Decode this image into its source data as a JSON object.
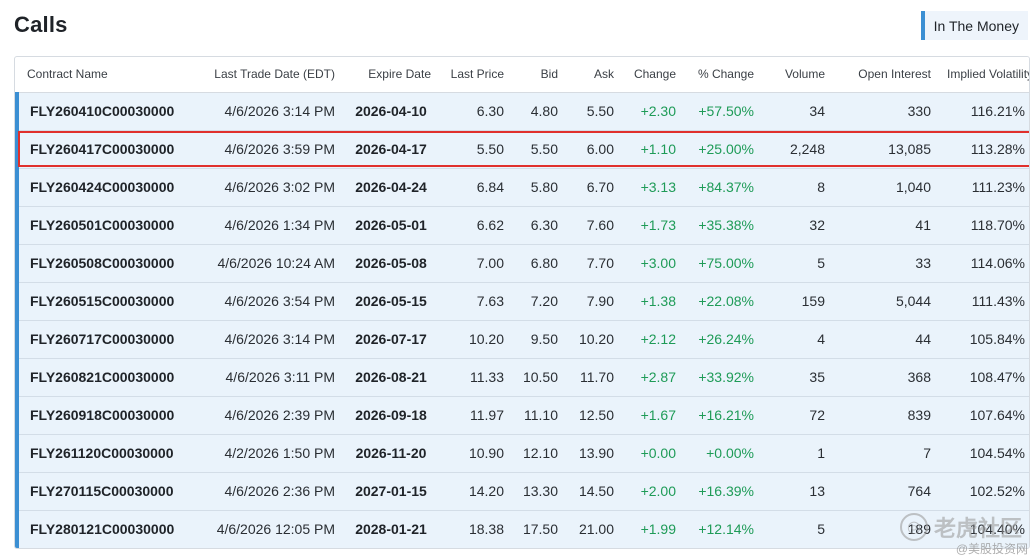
{
  "header": {
    "title": "Calls",
    "filter_badge": "In The Money"
  },
  "table": {
    "columns": [
      "Contract Name",
      "Last Trade Date (EDT)",
      "Expire Date",
      "Last Price",
      "Bid",
      "Ask",
      "Change",
      "% Change",
      "Volume",
      "Open Interest",
      "Implied Volatility"
    ],
    "highlighted_row": 1,
    "rows": [
      [
        "FLY260410C00030000",
        "4/6/2026 3:14 PM",
        "2026-04-10",
        "6.30",
        "4.80",
        "5.50",
        "+2.30",
        "+57.50%",
        "34",
        "330",
        "116.21%"
      ],
      [
        "FLY260417C00030000",
        "4/6/2026 3:59 PM",
        "2026-04-17",
        "5.50",
        "5.50",
        "6.00",
        "+1.10",
        "+25.00%",
        "2,248",
        "13,085",
        "113.28%"
      ],
      [
        "FLY260424C00030000",
        "4/6/2026 3:02 PM",
        "2026-04-24",
        "6.84",
        "5.80",
        "6.70",
        "+3.13",
        "+84.37%",
        "8",
        "1,040",
        "111.23%"
      ],
      [
        "FLY260501C00030000",
        "4/6/2026 1:34 PM",
        "2026-05-01",
        "6.62",
        "6.30",
        "7.60",
        "+1.73",
        "+35.38%",
        "32",
        "41",
        "118.70%"
      ],
      [
        "FLY260508C00030000",
        "4/6/2026 10:24 AM",
        "2026-05-08",
        "7.00",
        "6.80",
        "7.70",
        "+3.00",
        "+75.00%",
        "5",
        "33",
        "114.06%"
      ],
      [
        "FLY260515C00030000",
        "4/6/2026 3:54 PM",
        "2026-05-15",
        "7.63",
        "7.20",
        "7.90",
        "+1.38",
        "+22.08%",
        "159",
        "5,044",
        "111.43%"
      ],
      [
        "FLY260717C00030000",
        "4/6/2026 3:14 PM",
        "2026-07-17",
        "10.20",
        "9.50",
        "10.20",
        "+2.12",
        "+26.24%",
        "4",
        "44",
        "105.84%"
      ],
      [
        "FLY260821C00030000",
        "4/6/2026 3:11 PM",
        "2026-08-21",
        "11.33",
        "10.50",
        "11.70",
        "+2.87",
        "+33.92%",
        "35",
        "368",
        "108.47%"
      ],
      [
        "FLY260918C00030000",
        "4/6/2026 2:39 PM",
        "2026-09-18",
        "11.97",
        "11.10",
        "12.50",
        "+1.67",
        "+16.21%",
        "72",
        "839",
        "107.64%"
      ],
      [
        "FLY261120C00030000",
        "4/2/2026 1:50 PM",
        "2026-11-20",
        "10.90",
        "12.10",
        "13.90",
        "+0.00",
        "+0.00%",
        "1",
        "7",
        "104.54%"
      ],
      [
        "FLY270115C00030000",
        "4/6/2026 2:36 PM",
        "2027-01-15",
        "14.20",
        "13.30",
        "14.50",
        "+2.00",
        "+16.39%",
        "13",
        "764",
        "102.52%"
      ],
      [
        "FLY280121C00030000",
        "4/6/2026 12:05 PM",
        "2028-01-21",
        "18.38",
        "17.50",
        "21.00",
        "+1.99",
        "+12.14%",
        "5",
        "189",
        "104.40%"
      ]
    ]
  },
  "watermark": {
    "main": "老虎社区",
    "sub": "@美股投资网"
  },
  "colors": {
    "accent": "#3b8fd3",
    "positive": "#1e9b57",
    "highlight_border": "#e0302c",
    "row_background": "#eaf3fb"
  }
}
